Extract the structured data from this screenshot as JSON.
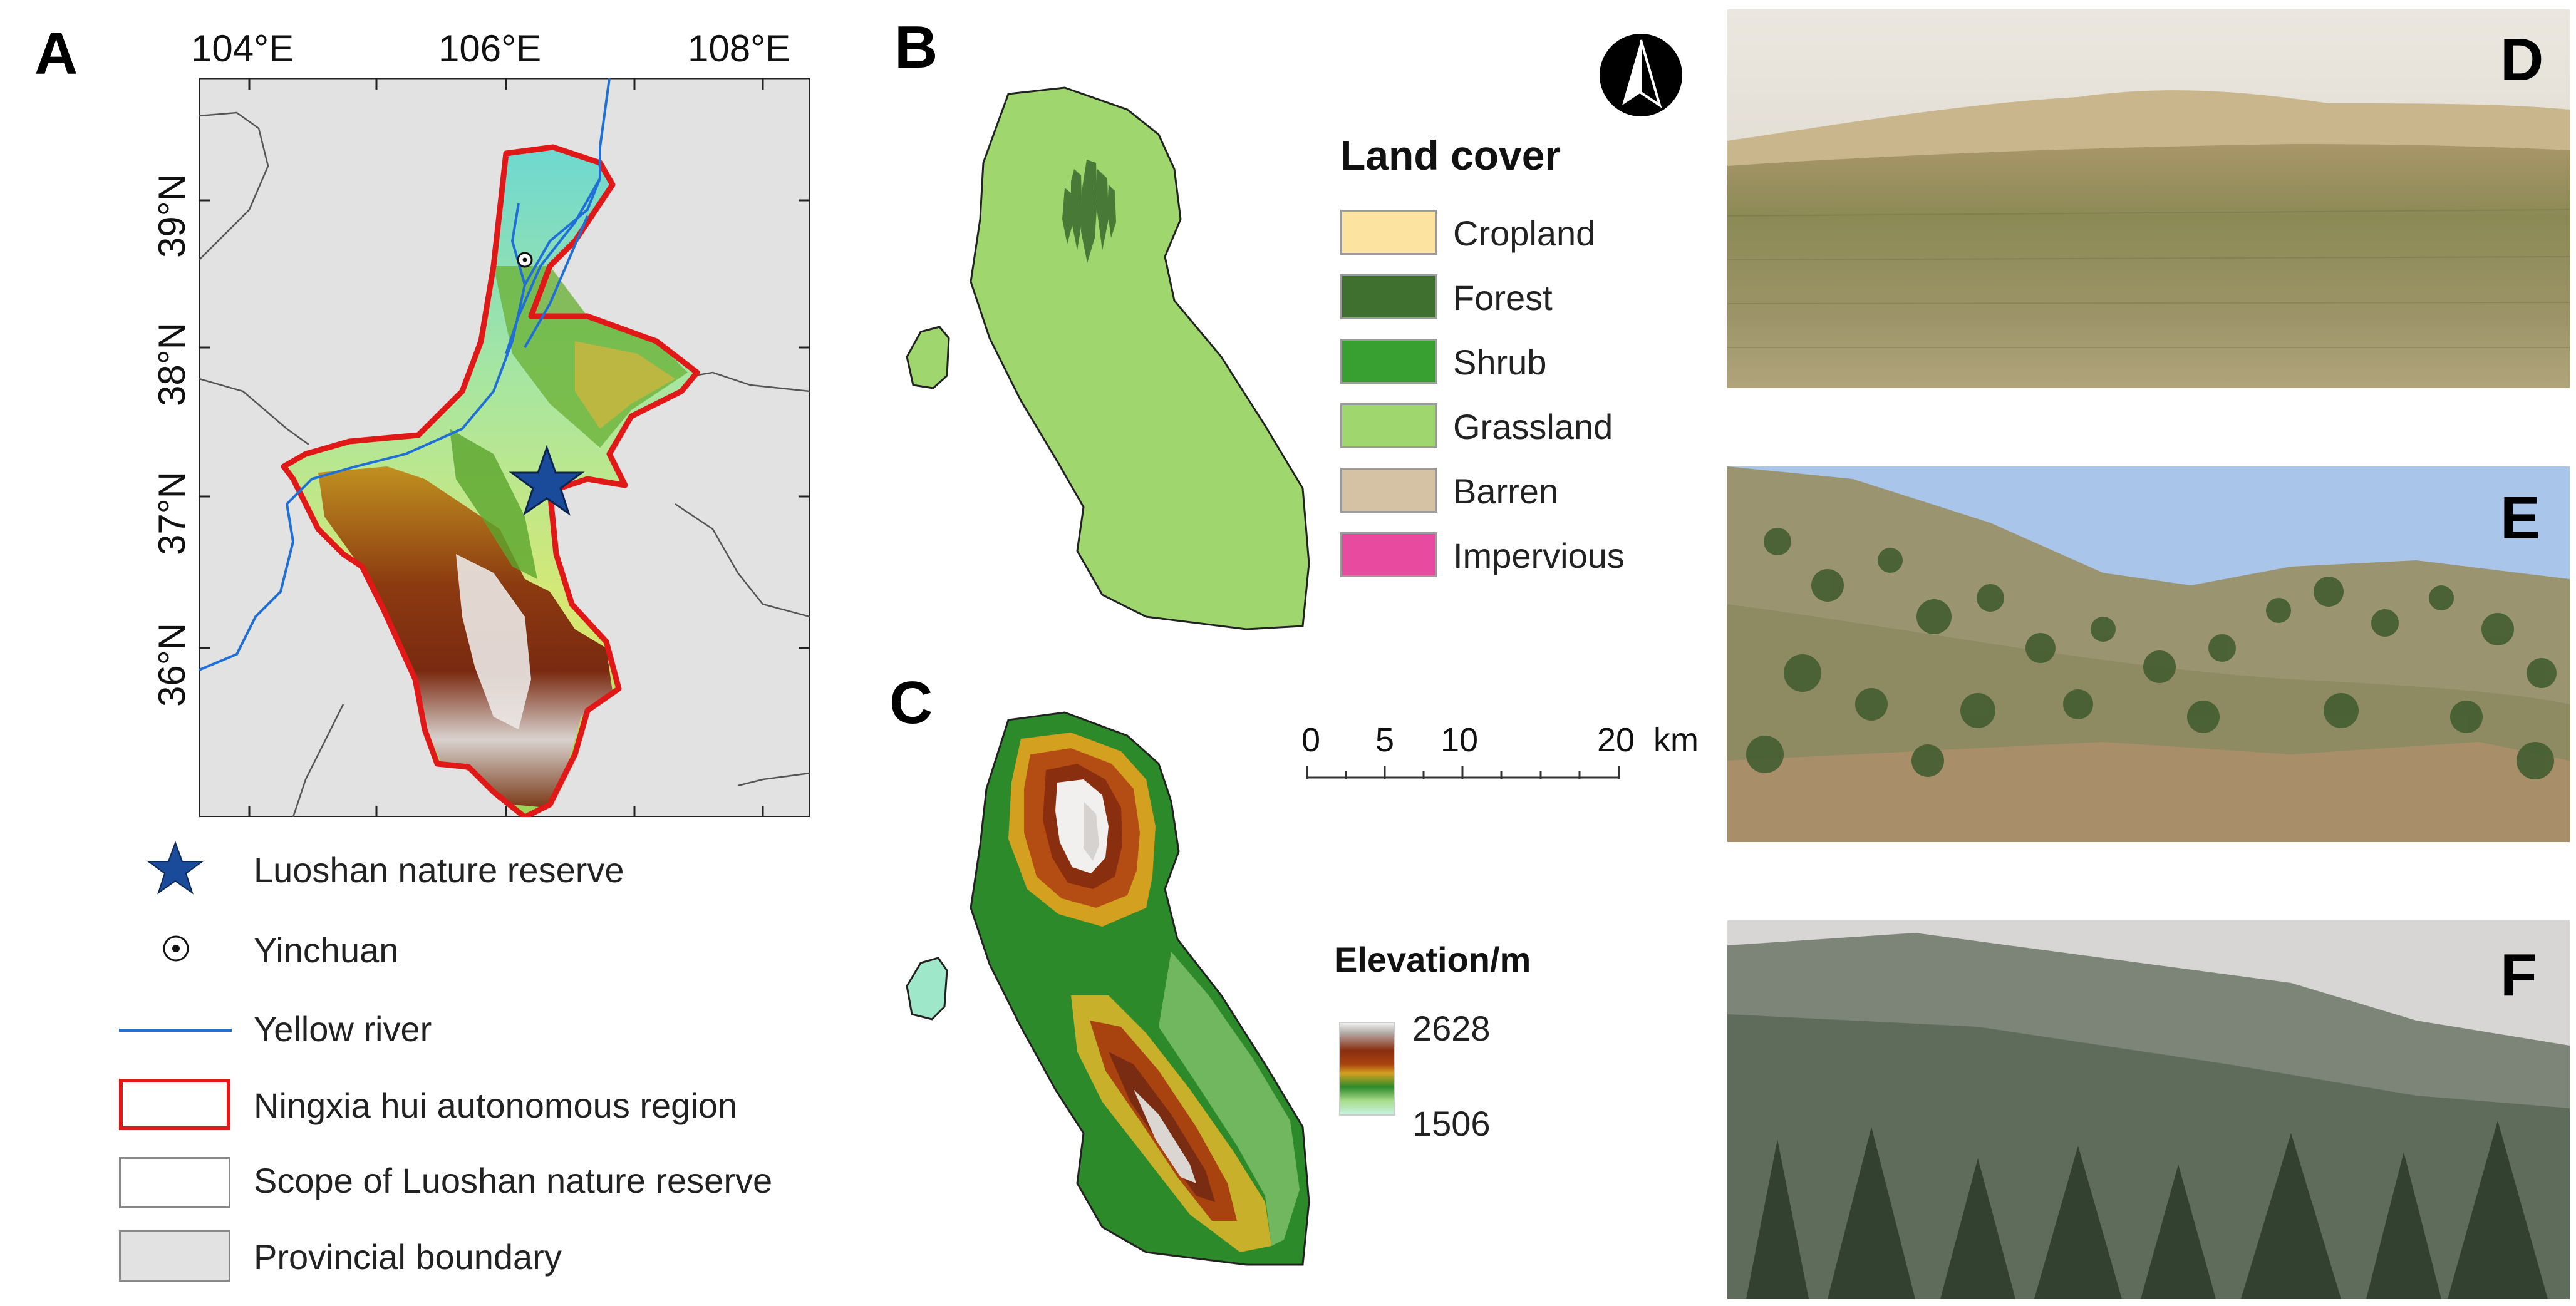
{
  "panels": {
    "a": "A",
    "b": "B",
    "c": "C",
    "d": "D",
    "e": "E",
    "f": "F"
  },
  "map_a": {
    "lon_ticks": [
      "104°E",
      "106°E",
      "108°E"
    ],
    "lat_ticks": [
      "39°N",
      "38°N",
      "37°N",
      "36°N"
    ],
    "colors": {
      "background": "#e2e2e2",
      "river": "#1f6fd6",
      "region_outline": "#e01818",
      "star": "#1a4a9a"
    }
  },
  "legend_a": {
    "items": [
      {
        "icon": "star-icon",
        "label": "Luoshan nature reserve"
      },
      {
        "icon": "dot-circle-icon",
        "label": "Yinchuan"
      },
      {
        "icon": "river-line-icon",
        "label": "Yellow river"
      },
      {
        "icon": "red-box-icon",
        "label": "Ningxia hui autonomous region"
      },
      {
        "icon": "white-box-icon",
        "label": "Scope of Luoshan nature reserve"
      },
      {
        "icon": "grey-box-icon",
        "label": "Provincial boundary"
      }
    ]
  },
  "land_cover": {
    "title": "Land cover",
    "classes": [
      {
        "label": "Cropland",
        "color": "#fde3a0"
      },
      {
        "label": "Forest",
        "color": "#3f7030"
      },
      {
        "label": "Shrub",
        "color": "#38a030"
      },
      {
        "label": "Grassland",
        "color": "#9fd66e"
      },
      {
        "label": "Barren",
        "color": "#d5c2a5"
      },
      {
        "label": "Impervious",
        "color": "#e84aa0"
      }
    ]
  },
  "scale_bar": {
    "labels": [
      "0",
      "5",
      "10",
      "20"
    ],
    "unit": "km"
  },
  "elevation": {
    "title": "Elevation/m",
    "max": "2628",
    "min": "1506"
  }
}
